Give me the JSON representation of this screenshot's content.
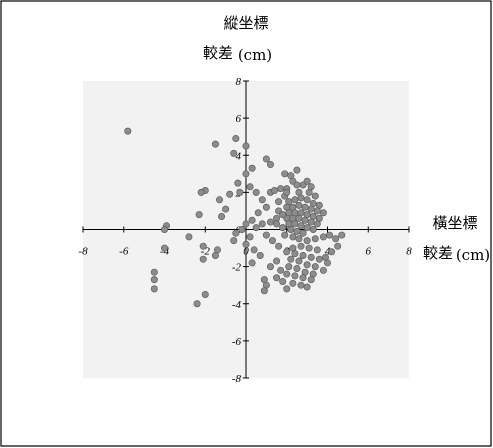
{
  "chart_data": {
    "type": "scatter",
    "y_title_line1": "縱坐標",
    "y_title_line2": "較差",
    "y_unit": "(cm)",
    "x_title_line1": "橫坐標",
    "x_title_line2": "較差",
    "x_unit": "(cm)",
    "xlim": [
      -8,
      8
    ],
    "ylim": [
      -8,
      8
    ],
    "x_ticks": [
      "-8",
      "-6",
      "-4",
      "-2",
      "0",
      "2",
      "4",
      "6",
      "8"
    ],
    "y_ticks": [
      "8",
      "6",
      "4",
      "2",
      "0",
      "-2",
      "-4",
      "-6",
      "-8"
    ],
    "grid": false,
    "colors": {
      "plot_background": "#f2f2f2",
      "point_fill": "#8c8c8c",
      "point_stroke": "#555555",
      "axis": "#000000"
    },
    "points": [
      [
        -5.8,
        5.3
      ],
      [
        -1.5,
        4.6
      ],
      [
        0.0,
        4.5
      ],
      [
        -0.5,
        4.9
      ],
      [
        -0.6,
        4.1
      ],
      [
        1.0,
        3.8
      ],
      [
        1.2,
        3.5
      ],
      [
        0.3,
        3.3
      ],
      [
        0.0,
        3.0
      ],
      [
        -0.4,
        2.5
      ],
      [
        -2.0,
        2.1
      ],
      [
        -2.2,
        2.0
      ],
      [
        -0.8,
        1.9
      ],
      [
        -1.3,
        1.6
      ],
      [
        -1.0,
        1.1
      ],
      [
        -1.2,
        0.7
      ],
      [
        -2.3,
        0.8
      ],
      [
        -3.9,
        0.2
      ],
      [
        -4.0,
        0.0
      ],
      [
        -2.8,
        -0.4
      ],
      [
        -2.1,
        -0.9
      ],
      [
        -1.4,
        -1.1
      ],
      [
        -1.5,
        -1.4
      ],
      [
        -2.1,
        -1.6
      ],
      [
        -4.0,
        -1.0
      ],
      [
        -4.5,
        -2.3
      ],
      [
        -4.5,
        -2.7
      ],
      [
        -4.5,
        -3.2
      ],
      [
        -2.4,
        -4.0
      ],
      [
        -2.0,
        -3.5
      ],
      [
        -0.3,
        2.0
      ],
      [
        0.2,
        2.3
      ],
      [
        0.5,
        2.0
      ],
      [
        0.8,
        1.6
      ],
      [
        1.0,
        1.2
      ],
      [
        0.6,
        0.9
      ],
      [
        0.3,
        0.5
      ],
      [
        0.0,
        0.3
      ],
      [
        -0.2,
        0.0
      ],
      [
        -0.5,
        -0.2
      ],
      [
        0.2,
        -0.4
      ],
      [
        0.5,
        0.1
      ],
      [
        0.8,
        0.3
      ],
      [
        1.2,
        0.4
      ],
      [
        1.5,
        0.6
      ],
      [
        -0.6,
        -0.6
      ],
      [
        0.0,
        -0.8
      ],
      [
        0.4,
        -1.1
      ],
      [
        0.7,
        -1.4
      ],
      [
        0.3,
        -1.8
      ],
      [
        0.9,
        -2.7
      ],
      [
        1.0,
        -3.0
      ],
      [
        0.9,
        -3.3
      ],
      [
        1.2,
        -2.0
      ],
      [
        1.5,
        -1.7
      ],
      [
        1.2,
        2.0
      ],
      [
        1.4,
        2.1
      ],
      [
        1.7,
        2.2
      ],
      [
        2.0,
        2.2
      ],
      [
        2.3,
        2.6
      ],
      [
        2.5,
        3.2
      ],
      [
        1.9,
        3.0
      ],
      [
        2.2,
        2.9
      ],
      [
        2.8,
        2.4
      ],
      [
        3.0,
        2.6
      ],
      [
        3.2,
        2.3
      ],
      [
        2.6,
        2.0
      ],
      [
        1.9,
        1.8
      ],
      [
        2.1,
        1.5
      ],
      [
        2.4,
        1.6
      ],
      [
        2.7,
        1.7
      ],
      [
        3.0,
        1.6
      ],
      [
        3.3,
        1.4
      ],
      [
        3.6,
        1.3
      ],
      [
        2.0,
        1.2
      ],
      [
        2.3,
        1.2
      ],
      [
        2.6,
        1.3
      ],
      [
        2.9,
        1.2
      ],
      [
        3.2,
        1.1
      ],
      [
        3.5,
        1.0
      ],
      [
        3.8,
        0.9
      ],
      [
        2.1,
        0.9
      ],
      [
        2.4,
        0.9
      ],
      [
        2.7,
        0.9
      ],
      [
        3.0,
        0.8
      ],
      [
        3.3,
        0.7
      ],
      [
        3.6,
        0.6
      ],
      [
        2.0,
        0.6
      ],
      [
        2.3,
        0.6
      ],
      [
        2.6,
        0.6
      ],
      [
        2.9,
        0.5
      ],
      [
        3.2,
        0.4
      ],
      [
        3.5,
        0.3
      ],
      [
        2.1,
        0.3
      ],
      [
        2.4,
        0.3
      ],
      [
        2.7,
        0.2
      ],
      [
        3.0,
        0.1
      ],
      [
        3.3,
        0.0
      ],
      [
        1.8,
        0.1
      ],
      [
        2.2,
        0.0
      ],
      [
        2.5,
        -0.1
      ],
      [
        2.8,
        -0.2
      ],
      [
        1.9,
        -0.3
      ],
      [
        2.3,
        -0.4
      ],
      [
        2.6,
        -0.5
      ],
      [
        3.0,
        -0.6
      ],
      [
        3.4,
        -0.5
      ],
      [
        3.8,
        -0.4
      ],
      [
        4.1,
        -0.3
      ],
      [
        4.4,
        -0.5
      ],
      [
        4.7,
        -0.3
      ],
      [
        4.5,
        -0.9
      ],
      [
        4.2,
        -1.2
      ],
      [
        3.9,
        -1.5
      ],
      [
        3.5,
        -1.1
      ],
      [
        3.1,
        -1.0
      ],
      [
        2.7,
        -0.9
      ],
      [
        2.3,
        -1.0
      ],
      [
        2.0,
        -1.2
      ],
      [
        2.4,
        -1.3
      ],
      [
        2.8,
        -1.4
      ],
      [
        3.2,
        -1.5
      ],
      [
        3.6,
        -1.6
      ],
      [
        2.2,
        -1.6
      ],
      [
        2.6,
        -1.7
      ],
      [
        3.0,
        -1.9
      ],
      [
        3.4,
        -2.0
      ],
      [
        3.8,
        -2.2
      ],
      [
        2.1,
        -2.0
      ],
      [
        2.5,
        -2.1
      ],
      [
        2.9,
        -2.3
      ],
      [
        3.3,
        -2.4
      ],
      [
        2.0,
        -2.4
      ],
      [
        2.4,
        -2.5
      ],
      [
        2.8,
        -2.6
      ],
      [
        3.2,
        -2.7
      ],
      [
        2.3,
        -2.9
      ],
      [
        2.7,
        -3.0
      ],
      [
        3.0,
        -3.1
      ],
      [
        1.7,
        -2.2
      ],
      [
        1.5,
        -2.6
      ],
      [
        1.8,
        -2.8
      ],
      [
        2.0,
        -3.2
      ],
      [
        4.0,
        -1.8
      ],
      [
        1.6,
        -0.9
      ],
      [
        1.3,
        -0.6
      ],
      [
        1.0,
        -0.3
      ],
      [
        1.6,
        1.0
      ],
      [
        1.8,
        0.8
      ],
      [
        1.5,
        0.3
      ],
      [
        3.4,
        1.8
      ],
      [
        3.1,
        2.0
      ],
      [
        2.5,
        2.4
      ],
      [
        1.6,
        1.5
      ],
      [
        2.0,
        2.0
      ]
    ]
  }
}
